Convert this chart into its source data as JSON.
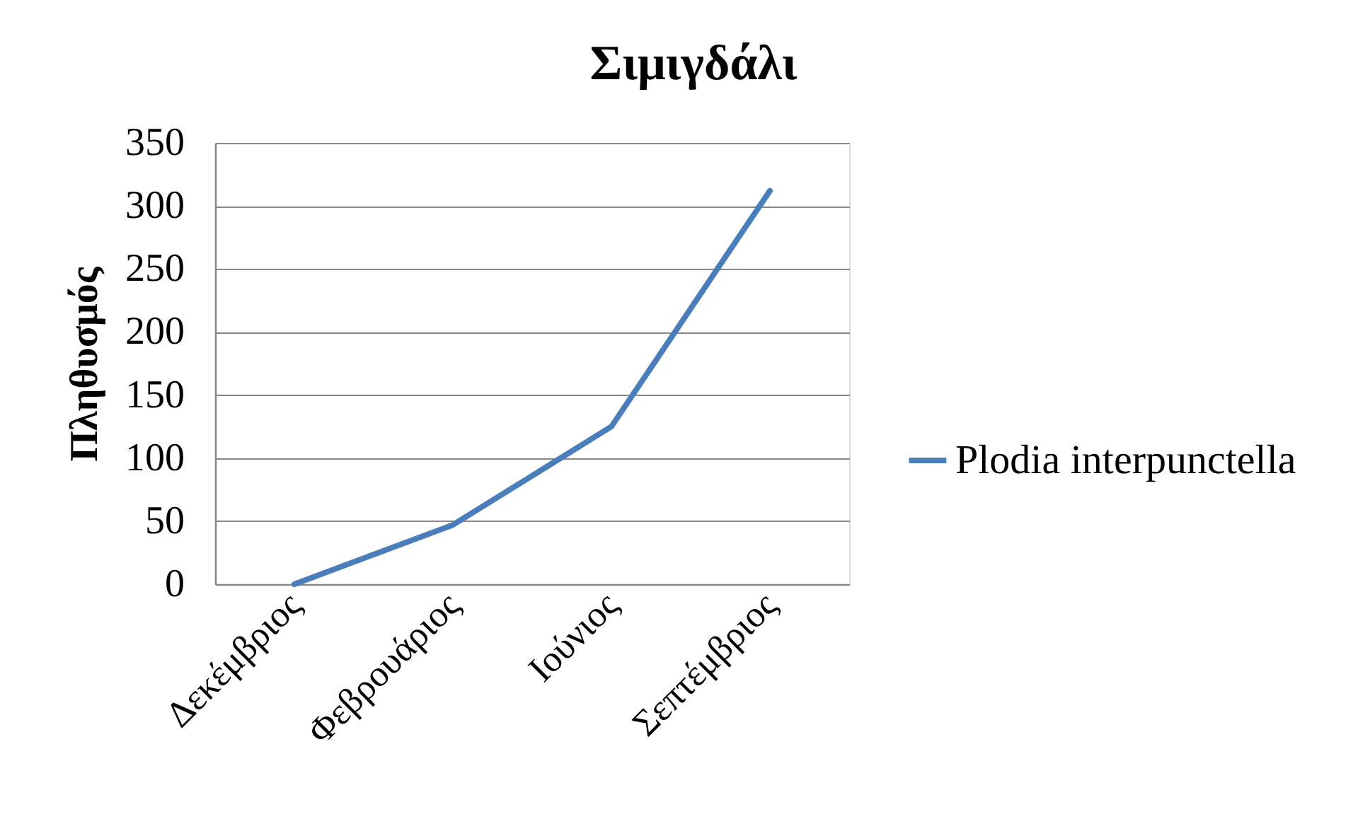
{
  "chart_data": {
    "type": "line",
    "title": "Σιμιγδάλι",
    "ylabel": "Πληθυσμός",
    "categories": [
      "Δεκέμβριος",
      "Φεβρουάριος",
      "Ιούνιος",
      "Σεπτέμβριος"
    ],
    "series": [
      {
        "name": "Plodia interpunctella",
        "color": "#4a7ebb",
        "values": [
          0,
          47,
          125,
          312
        ]
      }
    ],
    "ylim": [
      0,
      350
    ],
    "yticks": [
      0,
      50,
      100,
      150,
      200,
      250,
      300,
      350
    ],
    "grid": "y",
    "legend": "right",
    "line_style": "solid",
    "marker": "none"
  }
}
